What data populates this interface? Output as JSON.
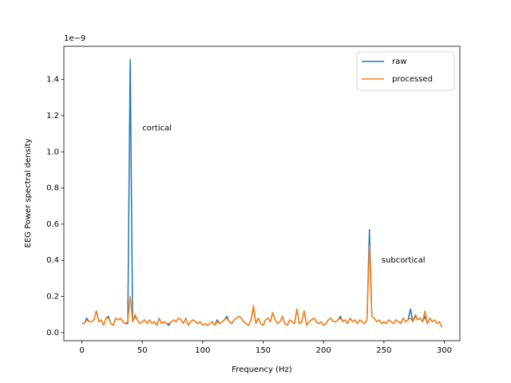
{
  "chart_data": {
    "type": "line",
    "xlabel": "Frequency (Hz)",
    "ylabel": "EEG Power spectral density",
    "y_offset": "1e−9",
    "x": [
      0,
      2,
      4,
      6,
      8,
      10,
      12,
      14,
      16,
      18,
      20,
      22,
      24,
      26,
      28,
      30,
      32,
      34,
      36,
      38,
      40,
      42,
      44,
      46,
      48,
      50,
      52,
      54,
      56,
      58,
      60,
      62,
      64,
      66,
      68,
      70,
      72,
      74,
      76,
      78,
      80,
      82,
      84,
      86,
      88,
      90,
      92,
      94,
      96,
      98,
      100,
      102,
      104,
      106,
      108,
      110,
      112,
      114,
      116,
      118,
      120,
      122,
      124,
      126,
      128,
      130,
      132,
      134,
      136,
      138,
      140,
      142,
      144,
      146,
      148,
      150,
      152,
      154,
      156,
      158,
      160,
      162,
      164,
      166,
      168,
      170,
      172,
      174,
      176,
      178,
      180,
      182,
      184,
      186,
      188,
      190,
      192,
      194,
      196,
      198,
      200,
      202,
      204,
      206,
      208,
      210,
      212,
      214,
      216,
      218,
      220,
      222,
      224,
      226,
      228,
      230,
      232,
      234,
      236,
      238,
      240,
      242,
      244,
      246,
      248,
      250,
      252,
      254,
      256,
      258,
      260,
      262,
      264,
      266,
      268,
      270,
      272,
      274,
      276,
      278,
      280,
      282,
      284,
      286,
      288,
      290,
      292,
      294,
      296,
      298
    ],
    "series": [
      {
        "name": "raw",
        "color": "#1f77b4",
        "values": [
          0.05,
          0.05,
          0.08,
          0.06,
          0.06,
          0.07,
          0.12,
          0.06,
          0.07,
          0.04,
          0.08,
          0.09,
          0.05,
          0.04,
          0.08,
          0.07,
          0.08,
          0.06,
          0.05,
          0.05,
          1.51,
          0.06,
          0.09,
          0.07,
          0.05,
          0.06,
          0.07,
          0.05,
          0.07,
          0.05,
          0.06,
          0.04,
          0.08,
          0.05,
          0.06,
          0.05,
          0.04,
          0.06,
          0.07,
          0.06,
          0.08,
          0.07,
          0.05,
          0.08,
          0.04,
          0.06,
          0.07,
          0.06,
          0.05,
          0.06,
          0.04,
          0.05,
          0.04,
          0.05,
          0.06,
          0.04,
          0.07,
          0.05,
          0.06,
          0.07,
          0.09,
          0.06,
          0.05,
          0.07,
          0.08,
          0.09,
          0.08,
          0.06,
          0.05,
          0.04,
          0.07,
          0.14,
          0.05,
          0.08,
          0.05,
          0.04,
          0.07,
          0.08,
          0.06,
          0.11,
          0.07,
          0.05,
          0.06,
          0.09,
          0.05,
          0.04,
          0.07,
          0.06,
          0.05,
          0.13,
          0.05,
          0.06,
          0.12,
          0.04,
          0.06,
          0.07,
          0.08,
          0.06,
          0.05,
          0.06,
          0.04,
          0.05,
          0.07,
          0.08,
          0.06,
          0.06,
          0.07,
          0.09,
          0.06,
          0.07,
          0.05,
          0.08,
          0.06,
          0.07,
          0.05,
          0.07,
          0.06,
          0.05,
          0.07,
          0.57,
          0.09,
          0.08,
          0.06,
          0.07,
          0.05,
          0.06,
          0.05,
          0.07,
          0.06,
          0.05,
          0.07,
          0.06,
          0.05,
          0.08,
          0.06,
          0.07,
          0.13,
          0.06,
          0.09,
          0.07,
          0.08,
          0.06,
          0.09,
          0.05,
          0.08,
          0.06,
          0.07,
          0.05,
          0.06,
          0.03
        ]
      },
      {
        "name": "processed",
        "color": "#ff7f0e",
        "values": [
          0.05,
          0.05,
          0.07,
          0.06,
          0.06,
          0.07,
          0.12,
          0.06,
          0.07,
          0.04,
          0.08,
          0.08,
          0.05,
          0.04,
          0.08,
          0.07,
          0.08,
          0.06,
          0.05,
          0.06,
          0.2,
          0.06,
          0.1,
          0.07,
          0.05,
          0.06,
          0.07,
          0.05,
          0.07,
          0.05,
          0.06,
          0.04,
          0.08,
          0.05,
          0.06,
          0.05,
          0.05,
          0.06,
          0.07,
          0.06,
          0.08,
          0.07,
          0.05,
          0.08,
          0.04,
          0.06,
          0.07,
          0.06,
          0.05,
          0.06,
          0.04,
          0.05,
          0.04,
          0.05,
          0.06,
          0.04,
          0.06,
          0.05,
          0.06,
          0.07,
          0.08,
          0.06,
          0.05,
          0.07,
          0.08,
          0.09,
          0.08,
          0.06,
          0.05,
          0.04,
          0.07,
          0.15,
          0.05,
          0.08,
          0.05,
          0.04,
          0.07,
          0.08,
          0.06,
          0.11,
          0.07,
          0.05,
          0.06,
          0.09,
          0.05,
          0.04,
          0.07,
          0.06,
          0.05,
          0.13,
          0.05,
          0.06,
          0.12,
          0.04,
          0.06,
          0.07,
          0.08,
          0.06,
          0.05,
          0.06,
          0.04,
          0.05,
          0.07,
          0.08,
          0.06,
          0.06,
          0.07,
          0.08,
          0.06,
          0.07,
          0.05,
          0.08,
          0.06,
          0.07,
          0.05,
          0.07,
          0.06,
          0.05,
          0.07,
          0.48,
          0.09,
          0.08,
          0.06,
          0.07,
          0.05,
          0.06,
          0.05,
          0.07,
          0.06,
          0.05,
          0.07,
          0.06,
          0.05,
          0.08,
          0.06,
          0.07,
          0.08,
          0.06,
          0.1,
          0.07,
          0.08,
          0.06,
          0.12,
          0.05,
          0.08,
          0.06,
          0.07,
          0.05,
          0.06,
          0.03
        ]
      }
    ],
    "annotations": [
      {
        "text": "cortical",
        "x": 50,
        "y": 1.1
      },
      {
        "text": "subcortical",
        "x": 248,
        "y": 0.37
      }
    ],
    "xlim": [
      -14.9,
      312.9
    ],
    "ylim": [
      -0.045,
      1.584
    ],
    "xticks": [
      0,
      50,
      100,
      150,
      200,
      250,
      300
    ],
    "yticks": [
      {
        "value": 0,
        "label": "0.0"
      },
      0.2,
      0.4,
      0.6,
      0.8,
      {
        "value": 1,
        "label": "1.0"
      },
      1.2,
      1.4
    ],
    "legend": "upper right"
  }
}
